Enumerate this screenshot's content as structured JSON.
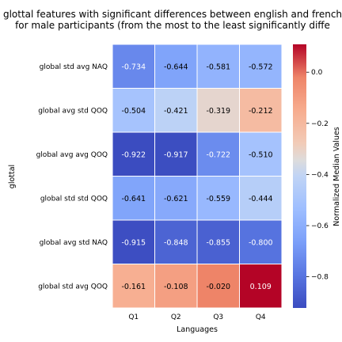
{
  "chart_data": {
    "type": "heatmap",
    "title_line1": "glottal features with significant differences between english and french",
    "title_line2": "for male participants (from the most to the least significantly diffe",
    "xlabel": "Languages",
    "ylabel": "glottal",
    "x_categories": [
      "Q1",
      "Q2",
      "Q3",
      "Q4"
    ],
    "y_categories": [
      "global std avg NAQ",
      "global avg std QOQ",
      "global avg avg QOQ",
      "global std std QOQ",
      "global avg std NAQ",
      "global std avg QOQ"
    ],
    "values": [
      [
        -0.734,
        -0.644,
        -0.581,
        -0.572
      ],
      [
        -0.504,
        -0.421,
        -0.319,
        -0.212
      ],
      [
        -0.922,
        -0.917,
        -0.722,
        -0.51
      ],
      [
        -0.641,
        -0.621,
        -0.559,
        -0.444
      ],
      [
        -0.915,
        -0.848,
        -0.855,
        -0.8
      ],
      [
        -0.161,
        -0.108,
        -0.02,
        0.109
      ]
    ],
    "value_labels": [
      [
        "-0.734",
        "-0.644",
        "-0.581",
        "-0.572"
      ],
      [
        "-0.504",
        "-0.421",
        "-0.319",
        "-0.212"
      ],
      [
        "-0.922",
        "-0.917",
        "-0.722",
        "-0.510"
      ],
      [
        "-0.641",
        "-0.621",
        "-0.559",
        "-0.444"
      ],
      [
        "-0.915",
        "-0.848",
        "-0.855",
        "-0.800"
      ],
      [
        "-0.161",
        "-0.108",
        "-0.020",
        "0.109"
      ]
    ],
    "colorbar": {
      "label": "Normalized Median Values",
      "colormap": "coolwarm",
      "vmin": -0.922,
      "vmax": 0.109,
      "ticks": [
        0.0,
        -0.2,
        -0.4,
        -0.6,
        -0.8
      ],
      "tick_labels": [
        "0.0",
        "−0.2",
        "−0.4",
        "−0.6",
        "−0.8"
      ]
    }
  }
}
